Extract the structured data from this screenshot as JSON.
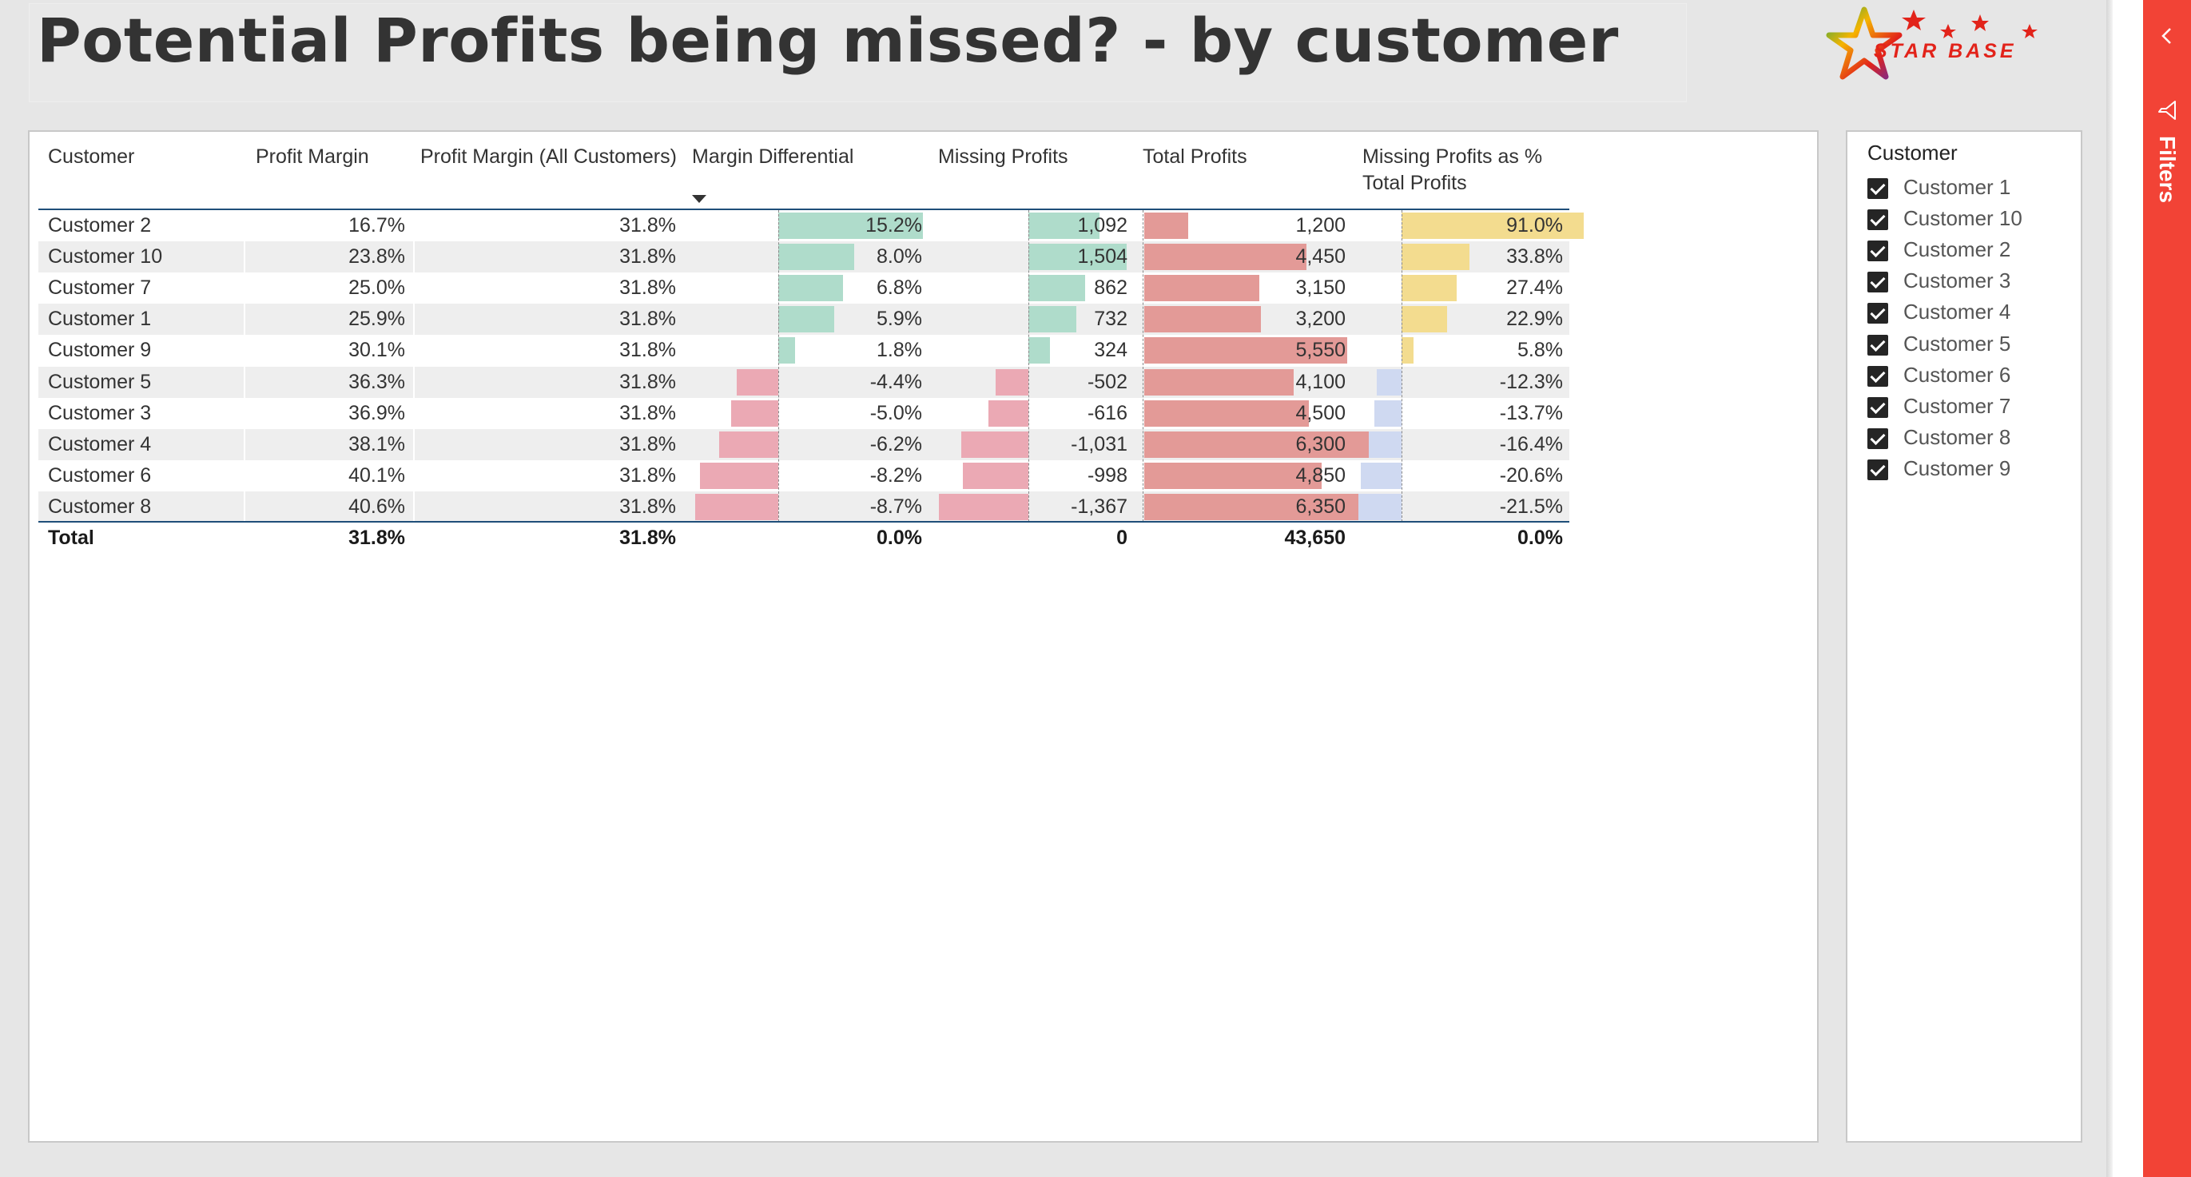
{
  "title": "Potential Profits being missed? - by customer",
  "logo": {
    "text": "STAR BASE",
    "icon": "star-logo-icon"
  },
  "colors": {
    "accent_red": "#f24336",
    "green_bar": "#afdccb",
    "pink_bar": "#eba9b4",
    "red_bar": "#e39a97",
    "yellow_bar": "#f3dc8f",
    "blue_bar": "#cfd9f1",
    "header_rule": "#1f4e79"
  },
  "table": {
    "columns": {
      "customer": "Customer",
      "profit_margin": "Profit Margin",
      "profit_margin_all": "Profit Margin (All Customers)",
      "margin_differential": "Margin Differential",
      "missing_profits": "Missing Profits",
      "total_profits": "Total Profits",
      "missing_pct_line1": "Missing Profits as %",
      "missing_pct_line2": "Total Profits"
    },
    "sorted_column": "margin_differential",
    "sort_direction": "descending",
    "rows": [
      {
        "customer": "Customer 2",
        "profit_margin": "16.7%",
        "profit_margin_all": "31.8%",
        "margin_differential": "15.2%",
        "margin_differential_value": 15.2,
        "missing_profits": "1,092",
        "missing_profits_value": 1092,
        "total_profits": "1,200",
        "total_profits_value": 1200,
        "missing_pct": "91.0%",
        "missing_pct_value": 91.0
      },
      {
        "customer": "Customer 10",
        "profit_margin": "23.8%",
        "profit_margin_all": "31.8%",
        "margin_differential": "8.0%",
        "margin_differential_value": 8.0,
        "missing_profits": "1,504",
        "missing_profits_value": 1504,
        "total_profits": "4,450",
        "total_profits_value": 4450,
        "missing_pct": "33.8%",
        "missing_pct_value": 33.8
      },
      {
        "customer": "Customer 7",
        "profit_margin": "25.0%",
        "profit_margin_all": "31.8%",
        "margin_differential": "6.8%",
        "margin_differential_value": 6.8,
        "missing_profits": "862",
        "missing_profits_value": 862,
        "total_profits": "3,150",
        "total_profits_value": 3150,
        "missing_pct": "27.4%",
        "missing_pct_value": 27.4
      },
      {
        "customer": "Customer 1",
        "profit_margin": "25.9%",
        "profit_margin_all": "31.8%",
        "margin_differential": "5.9%",
        "margin_differential_value": 5.9,
        "missing_profits": "732",
        "missing_profits_value": 732,
        "total_profits": "3,200",
        "total_profits_value": 3200,
        "missing_pct": "22.9%",
        "missing_pct_value": 22.9
      },
      {
        "customer": "Customer 9",
        "profit_margin": "30.1%",
        "profit_margin_all": "31.8%",
        "margin_differential": "1.8%",
        "margin_differential_value": 1.8,
        "missing_profits": "324",
        "missing_profits_value": 324,
        "total_profits": "5,550",
        "total_profits_value": 5550,
        "missing_pct": "5.8%",
        "missing_pct_value": 5.8
      },
      {
        "customer": "Customer 5",
        "profit_margin": "36.3%",
        "profit_margin_all": "31.8%",
        "margin_differential": "-4.4%",
        "margin_differential_value": -4.4,
        "missing_profits": "-502",
        "missing_profits_value": -502,
        "total_profits": "4,100",
        "total_profits_value": 4100,
        "missing_pct": "-12.3%",
        "missing_pct_value": -12.3
      },
      {
        "customer": "Customer 3",
        "profit_margin": "36.9%",
        "profit_margin_all": "31.8%",
        "margin_differential": "-5.0%",
        "margin_differential_value": -5.0,
        "missing_profits": "-616",
        "missing_profits_value": -616,
        "total_profits": "4,500",
        "total_profits_value": 4500,
        "missing_pct": "-13.7%",
        "missing_pct_value": -13.7
      },
      {
        "customer": "Customer 4",
        "profit_margin": "38.1%",
        "profit_margin_all": "31.8%",
        "margin_differential": "-6.2%",
        "margin_differential_value": -6.2,
        "missing_profits": "-1,031",
        "missing_profits_value": -1031,
        "total_profits": "6,300",
        "total_profits_value": 6300,
        "missing_pct": "-16.4%",
        "missing_pct_value": -16.4
      },
      {
        "customer": "Customer 6",
        "profit_margin": "40.1%",
        "profit_margin_all": "31.8%",
        "margin_differential": "-8.2%",
        "margin_differential_value": -8.2,
        "missing_profits": "-998",
        "missing_profits_value": -998,
        "total_profits": "4,850",
        "total_profits_value": 4850,
        "missing_pct": "-20.6%",
        "missing_pct_value": -20.6
      },
      {
        "customer": "Customer 8",
        "profit_margin": "40.6%",
        "profit_margin_all": "31.8%",
        "margin_differential": "-8.7%",
        "margin_differential_value": -8.7,
        "missing_profits": "-1,367",
        "missing_profits_value": -1367,
        "total_profits": "6,350",
        "total_profits_value": 6350,
        "missing_pct": "-21.5%",
        "missing_pct_value": -21.5
      }
    ],
    "total": {
      "customer": "Total",
      "profit_margin": "31.8%",
      "profit_margin_all": "31.8%",
      "margin_differential": "0.0%",
      "missing_profits": "0",
      "total_profits": "43,650",
      "missing_pct": "0.0%"
    }
  },
  "slicer": {
    "title": "Customer",
    "items": [
      {
        "label": "Customer 1",
        "checked": true
      },
      {
        "label": "Customer 10",
        "checked": true
      },
      {
        "label": "Customer 2",
        "checked": true
      },
      {
        "label": "Customer 3",
        "checked": true
      },
      {
        "label": "Customer 4",
        "checked": true
      },
      {
        "label": "Customer 5",
        "checked": true
      },
      {
        "label": "Customer 6",
        "checked": true
      },
      {
        "label": "Customer 7",
        "checked": true
      },
      {
        "label": "Customer 8",
        "checked": true
      },
      {
        "label": "Customer 9",
        "checked": true
      }
    ]
  },
  "filters_pane": {
    "label": "Filters",
    "collapse_icon": "chevron-left-icon",
    "filter_icon": "funnel-icon"
  }
}
